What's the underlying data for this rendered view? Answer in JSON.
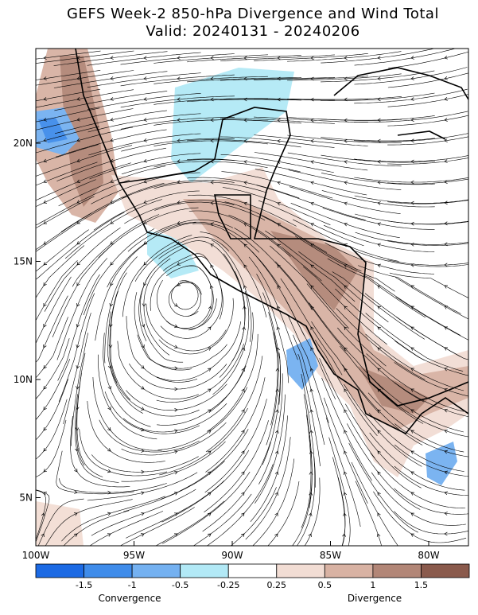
{
  "title": "GEFS Week-2 850-hPa Divergence and Wind Total",
  "subtitle": "Valid: 20240131 - 20240206",
  "map": {
    "lon_ticks": [
      {
        "value": -100,
        "label": "100W"
      },
      {
        "value": -95,
        "label": "95W"
      },
      {
        "value": -90,
        "label": "90W"
      },
      {
        "value": -85,
        "label": "85W"
      },
      {
        "value": -80,
        "label": "80W"
      }
    ],
    "lat_ticks": [
      {
        "value": 20,
        "label": "20N"
      },
      {
        "value": 15,
        "label": "15N"
      },
      {
        "value": 10,
        "label": "10N"
      },
      {
        "value": 5,
        "label": "5N"
      }
    ]
  },
  "colorbar": {
    "colors": [
      "#1c6ae4",
      "#3f8cea",
      "#74b1f1",
      "#b2e9f6",
      "#ffffff",
      "#f2ddd4",
      "#d8b2a3",
      "#b28677",
      "#8a5a4c"
    ],
    "labels": [
      -1.5,
      -1,
      -0.5,
      -0.25,
      0.25,
      0.5,
      1,
      1.5
    ],
    "convergence_label": "Convergence",
    "divergence_label": "Divergence"
  }
}
